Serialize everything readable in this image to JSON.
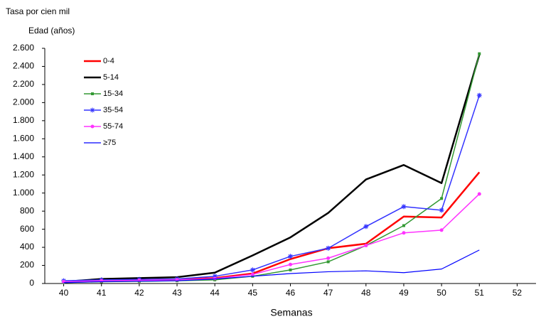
{
  "chart_data": {
    "type": "line",
    "y_axis_title": "Tasa por cien mil",
    "legend_title": "Edad (años)",
    "x_axis_title": "Semanas",
    "x": [
      40,
      41,
      42,
      43,
      44,
      45,
      46,
      47,
      48,
      49,
      50,
      51
    ],
    "series": [
      {
        "name": "0-4",
        "color": "#ff0000",
        "marker": "none",
        "width": 2.5,
        "values": [
          15,
          35,
          40,
          45,
          60,
          110,
          270,
          390,
          440,
          740,
          730,
          1230
        ]
      },
      {
        "name": "5-14",
        "color": "#000000",
        "marker": "none",
        "width": 2.5,
        "values": [
          20,
          50,
          60,
          70,
          120,
          310,
          510,
          780,
          1150,
          1310,
          1110,
          2530
        ]
      },
      {
        "name": "15-34",
        "color": "#339933",
        "marker": "square",
        "width": 1.5,
        "values": [
          10,
          20,
          25,
          30,
          40,
          80,
          150,
          240,
          420,
          640,
          940,
          2540
        ]
      },
      {
        "name": "35-54",
        "color": "#3333ff",
        "marker": "star",
        "width": 1.5,
        "values": [
          30,
          40,
          45,
          50,
          80,
          150,
          300,
          390,
          630,
          850,
          810,
          2080
        ]
      },
      {
        "name": "55-74",
        "color": "#ff33ff",
        "marker": "circle",
        "width": 1.5,
        "values": [
          20,
          30,
          35,
          40,
          55,
          100,
          210,
          280,
          420,
          560,
          590,
          990
        ]
      },
      {
        "name": "≥75",
        "color": "#0000ff",
        "marker": "none",
        "width": 1.2,
        "values": [
          10,
          20,
          25,
          30,
          50,
          80,
          110,
          130,
          140,
          120,
          160,
          370
        ]
      }
    ],
    "xlim": [
      39.5,
      52.5
    ],
    "xticks": [
      40,
      41,
      42,
      43,
      44,
      45,
      46,
      47,
      48,
      49,
      50,
      51,
      52
    ],
    "ylim": [
      0,
      2600
    ],
    "yticks": [
      0,
      200,
      400,
      600,
      800,
      {
        "value": 1000,
        "label": "1.000"
      },
      {
        "value": 1200,
        "label": "1.200"
      },
      {
        "value": 1400,
        "label": "1.400"
      },
      {
        "value": 1600,
        "label": "1.600"
      },
      {
        "value": 1800,
        "label": "1.800"
      },
      {
        "value": 2000,
        "label": "2.000"
      },
      {
        "value": 2200,
        "label": "2.200"
      },
      {
        "value": 2400,
        "label": "2.400"
      },
      {
        "value": 2600,
        "label": "2.600"
      }
    ],
    "grid": false
  }
}
